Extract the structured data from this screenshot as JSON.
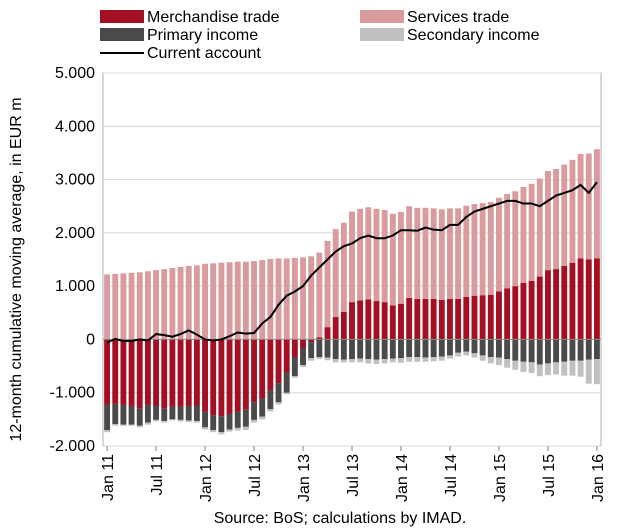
{
  "chart_data": {
    "type": "bar",
    "stacked": true,
    "title": "",
    "xlabel": "",
    "ylabel": "12-month cumulative moving average, in EUR m",
    "ylim": [
      -2000,
      5000
    ],
    "y_ticks": [
      5000,
      4000,
      3000,
      2000,
      1000,
      0,
      -1000,
      -2000
    ],
    "y_tick_labels": [
      "5.000",
      "4.000",
      "3.000",
      "2.000",
      "1.000",
      "0",
      "-1.000",
      "-2.000"
    ],
    "x_tick_labels": [
      "Jan 11",
      "Jul 11",
      "Jan 12",
      "Jul 12",
      "Jan 13",
      "Jul 13",
      "Jan 14",
      "Jul 14",
      "Jan 15",
      "Jul 15",
      "Jan 16"
    ],
    "x_tick_index_step": 6,
    "grid": true,
    "legend_placement": "top, two columns",
    "categories": [
      "Jan 11",
      "Feb 11",
      "Mar 11",
      "Apr 11",
      "May 11",
      "Jun 11",
      "Jul 11",
      "Aug 11",
      "Sep 11",
      "Oct 11",
      "Nov 11",
      "Dec 11",
      "Jan 12",
      "Feb 12",
      "Mar 12",
      "Apr 12",
      "May 12",
      "Jun 12",
      "Jul 12",
      "Aug 12",
      "Sep 12",
      "Oct 12",
      "Nov 12",
      "Dec 12",
      "Jan 13",
      "Feb 13",
      "Mar 13",
      "Apr 13",
      "May 13",
      "Jun 13",
      "Jul 13",
      "Aug 13",
      "Sep 13",
      "Oct 13",
      "Nov 13",
      "Dec 13",
      "Jan 14",
      "Feb 14",
      "Mar 14",
      "Apr 14",
      "May 14",
      "Jun 14",
      "Jul 14",
      "Aug 14",
      "Sep 14",
      "Oct 14",
      "Nov 14",
      "Dec 14",
      "Jan 15",
      "Feb 15",
      "Mar 15",
      "Apr 15",
      "May 15",
      "Jun 15",
      "Jul 15",
      "Aug 15",
      "Sep 15",
      "Oct 15",
      "Nov 15",
      "Dec 15",
      "Jan 16"
    ],
    "series": [
      {
        "name": "Merchandise trade",
        "type": "bar",
        "color": "#a50f23",
        "values": [
          -1230,
          -1210,
          -1230,
          -1250,
          -1300,
          -1220,
          -1250,
          -1300,
          -1260,
          -1260,
          -1250,
          -1240,
          -1360,
          -1420,
          -1440,
          -1400,
          -1360,
          -1320,
          -1180,
          -1110,
          -960,
          -820,
          -620,
          -330,
          -160,
          -50,
          40,
          230,
          420,
          520,
          700,
          730,
          750,
          720,
          700,
          640,
          670,
          780,
          760,
          760,
          760,
          740,
          760,
          760,
          800,
          820,
          830,
          840,
          900,
          960,
          1000,
          1060,
          1100,
          1180,
          1300,
          1320,
          1380,
          1440,
          1520,
          1500,
          1520
        ]
      },
      {
        "name": "Services trade",
        "type": "bar",
        "color": "#d99b9e",
        "values": [
          1220,
          1230,
          1240,
          1250,
          1260,
          1280,
          1300,
          1320,
          1340,
          1360,
          1380,
          1390,
          1420,
          1430,
          1440,
          1450,
          1460,
          1460,
          1470,
          1490,
          1510,
          1520,
          1520,
          1530,
          1540,
          1560,
          1590,
          1620,
          1650,
          1670,
          1700,
          1720,
          1730,
          1730,
          1730,
          1720,
          1720,
          1720,
          1710,
          1710,
          1700,
          1700,
          1700,
          1700,
          1710,
          1720,
          1730,
          1740,
          1760,
          1770,
          1780,
          1800,
          1820,
          1840,
          1860,
          1880,
          1900,
          1930,
          1960,
          1990,
          2050
        ]
      },
      {
        "name": "Primary income",
        "type": "bar",
        "color": "#4a4a4a",
        "values": [
          -470,
          -380,
          -370,
          -350,
          -320,
          -340,
          -260,
          -230,
          -240,
          -250,
          -270,
          -290,
          -290,
          -280,
          -300,
          -290,
          -300,
          -320,
          -330,
          -340,
          -350,
          -360,
          -380,
          -360,
          -320,
          -300,
          -330,
          -340,
          -370,
          -380,
          -370,
          -360,
          -370,
          -380,
          -370,
          -360,
          -350,
          -330,
          -330,
          -340,
          -330,
          -320,
          -300,
          -250,
          -230,
          -260,
          -300,
          -330,
          -340,
          -370,
          -400,
          -420,
          -430,
          -470,
          -450,
          -430,
          -420,
          -400,
          -400,
          -380,
          -370
        ]
      },
      {
        "name": "Secondary income",
        "type": "bar",
        "color": "#c0c0c0",
        "values": [
          -40,
          -30,
          -20,
          -20,
          -30,
          -40,
          -30,
          -30,
          -20,
          -30,
          -30,
          -30,
          -40,
          -40,
          -40,
          -40,
          -50,
          -60,
          -50,
          -50,
          -40,
          -40,
          -30,
          -30,
          -40,
          -50,
          -40,
          -50,
          -60,
          -50,
          -60,
          -70,
          -80,
          -80,
          -80,
          -70,
          -90,
          -90,
          -90,
          -80,
          -80,
          -80,
          -60,
          -70,
          -70,
          -80,
          -100,
          -120,
          -140,
          -160,
          -170,
          -190,
          -200,
          -220,
          -220,
          -230,
          -260,
          -280,
          -300,
          -450,
          -470
        ]
      },
      {
        "name": "Current account",
        "type": "line",
        "color": "#000000",
        "values": [
          -60,
          10,
          -30,
          -30,
          0,
          -20,
          100,
          80,
          50,
          100,
          170,
          90,
          0,
          -20,
          0,
          60,
          130,
          110,
          120,
          300,
          420,
          650,
          820,
          900,
          1000,
          1200,
          1350,
          1500,
          1650,
          1750,
          1800,
          1900,
          1950,
          1900,
          1900,
          1950,
          2050,
          2050,
          2040,
          2100,
          2060,
          2050,
          2150,
          2150,
          2300,
          2400,
          2450,
          2500,
          2550,
          2600,
          2600,
          2550,
          2550,
          2500,
          2600,
          2700,
          2750,
          2800,
          2900,
          2750,
          2950
        ]
      }
    ]
  },
  "legend": {
    "items": [
      {
        "label": "Merchandise trade",
        "type": "bar",
        "color": "#a50f23"
      },
      {
        "label": "Services trade",
        "type": "bar",
        "color": "#d99b9e"
      },
      {
        "label": "Primary income",
        "type": "bar",
        "color": "#4a4a4a"
      },
      {
        "label": "Secondary income",
        "type": "bar",
        "color": "#c0c0c0"
      },
      {
        "label": "Current account",
        "type": "line",
        "color": "#000000"
      }
    ]
  },
  "source": "Source: BoS; calculations by IMAD."
}
